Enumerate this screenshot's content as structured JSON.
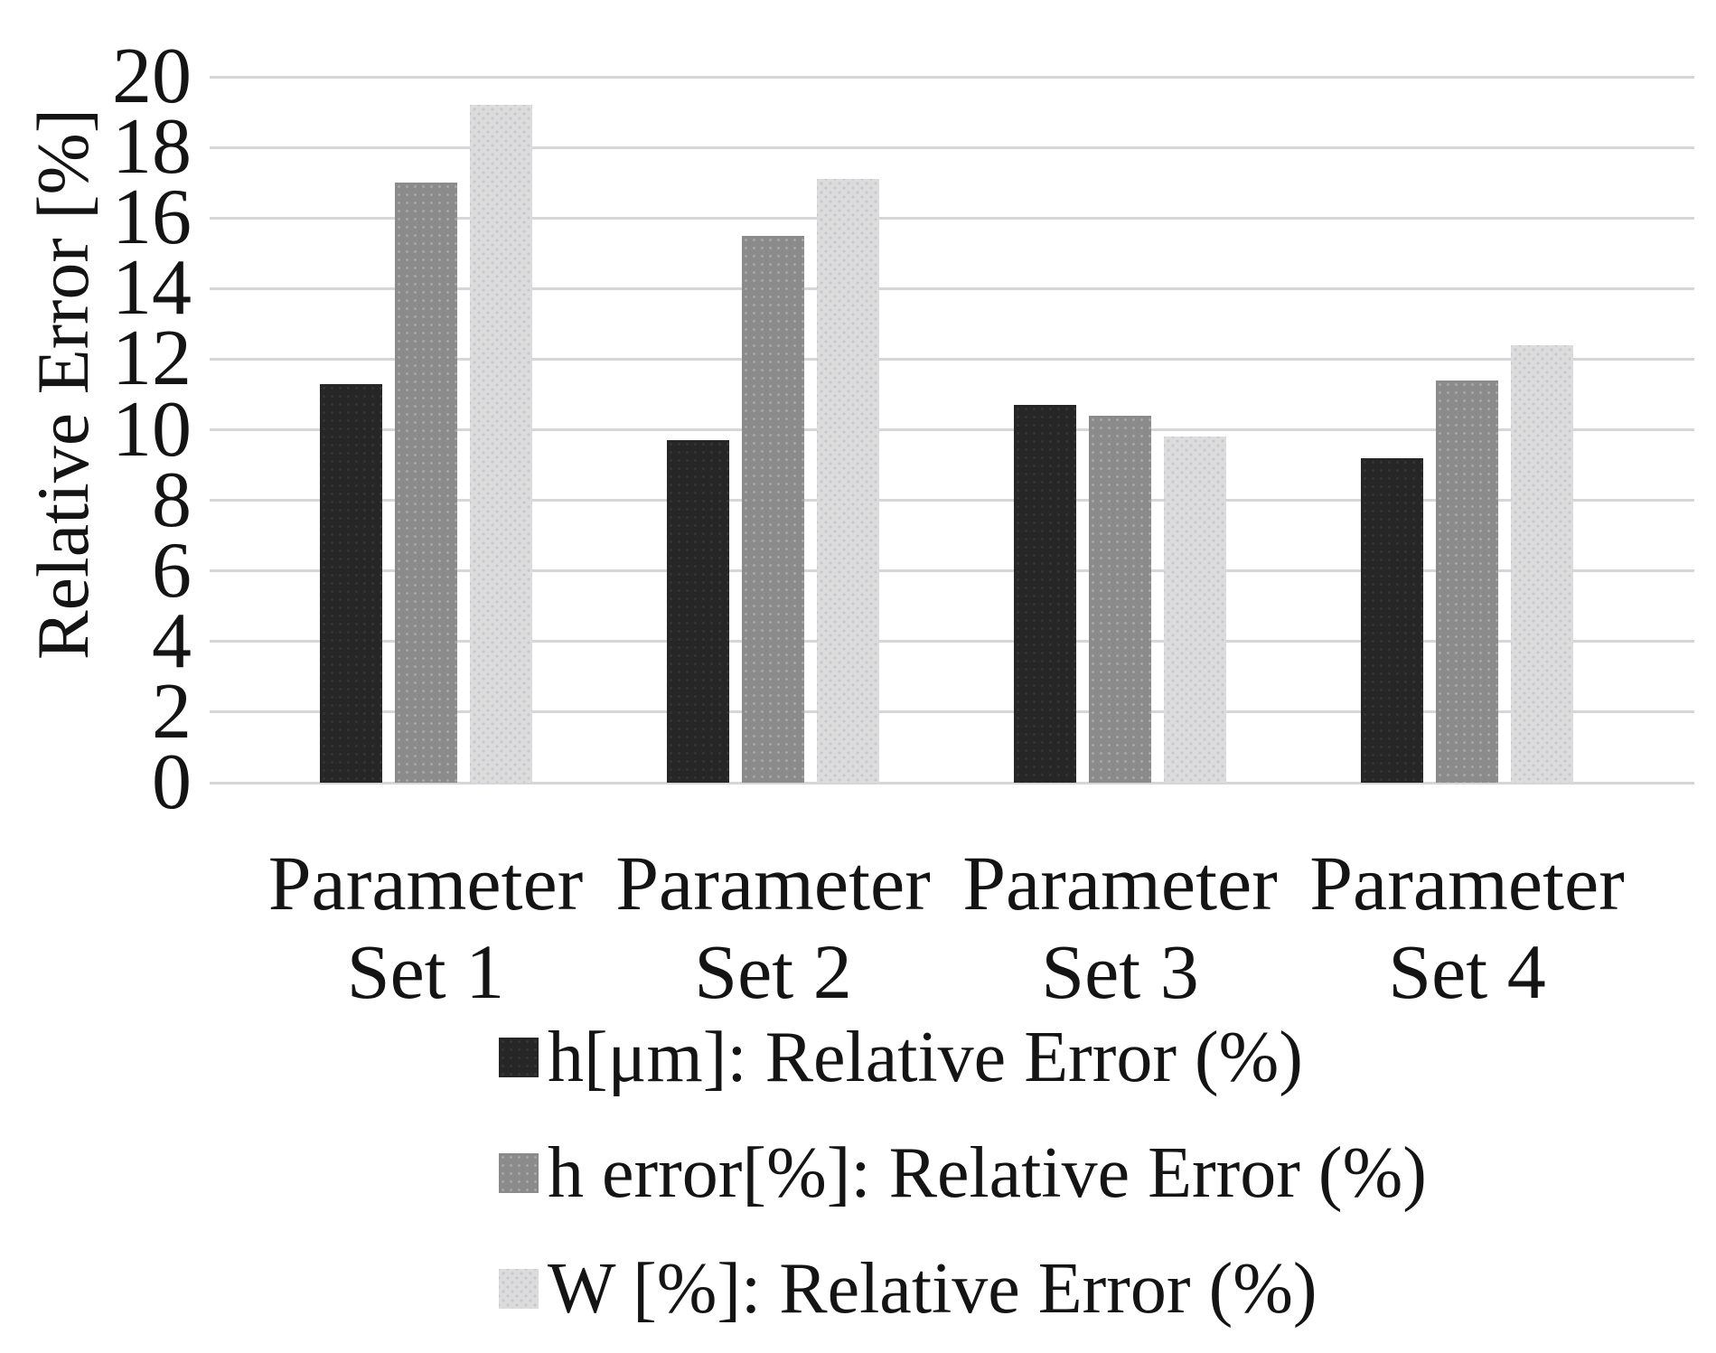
{
  "chart_data": {
    "type": "bar",
    "ylabel": "Relative Error [%]",
    "ylim": [
      0,
      20
    ],
    "ytick_step": 2,
    "yticks": [
      0,
      2,
      4,
      6,
      8,
      10,
      12,
      14,
      16,
      18,
      20
    ],
    "grid": true,
    "gridline_color": "#d6d6d9",
    "background_color": "#ffffff",
    "text_color": "#141414",
    "legend_position": "bottom-left",
    "categories": [
      "Parameter Set 1",
      "Parameter Set 2",
      "Parameter Set 3",
      "Parameter Set 4"
    ],
    "category_lines": [
      [
        "Parameter",
        "Set 1"
      ],
      [
        "Parameter",
        "Set 2"
      ],
      [
        "Parameter",
        "Set 3"
      ],
      [
        "Parameter",
        "Set 4"
      ]
    ],
    "series": [
      {
        "name": "h[μm]: Relative Error (%)",
        "color": "#262626",
        "values": [
          11.3,
          9.7,
          10.7,
          9.2
        ]
      },
      {
        "name": "h error[%]: Relative Error (%)",
        "color": "#8b8b8b",
        "values": [
          17.0,
          15.5,
          10.4,
          11.4
        ]
      },
      {
        "name": "W [%]: Relative Error (%)",
        "color": "#dcdcdc",
        "values": [
          19.2,
          17.1,
          9.8,
          12.4
        ]
      }
    ]
  }
}
